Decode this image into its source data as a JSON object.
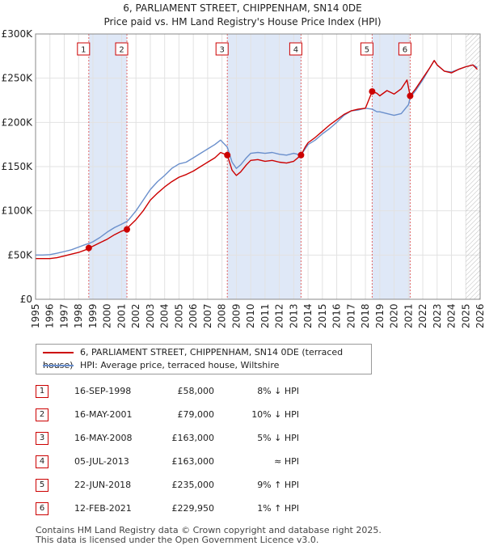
{
  "title_line1": "6, PARLIAMENT STREET, CHIPPENHAM, SN14 0DE",
  "title_line2": "Price paid vs. HM Land Registry's House Price Index (HPI)",
  "legend": {
    "red_label": "6, PARLIAMENT STREET, CHIPPENHAM, SN14 0DE (terraced house)",
    "blue_label": "HPI: Average price, terraced house, Wiltshire"
  },
  "events": [
    {
      "num": "1",
      "date": "16-SEP-1998",
      "price": "£58,000",
      "hpi": "8% ↓ HPI"
    },
    {
      "num": "2",
      "date": "16-MAY-2001",
      "price": "£79,000",
      "hpi": "10% ↓ HPI"
    },
    {
      "num": "3",
      "date": "16-MAY-2008",
      "price": "£163,000",
      "hpi": "5% ↓ HPI"
    },
    {
      "num": "4",
      "date": "05-JUL-2013",
      "price": "£163,000",
      "hpi": "≈ HPI"
    },
    {
      "num": "5",
      "date": "22-JUN-2018",
      "price": "£235,000",
      "hpi": "9% ↑ HPI"
    },
    {
      "num": "6",
      "date": "12-FEB-2021",
      "price": "£229,950",
      "hpi": "1% ↑ HPI"
    }
  ],
  "footer_line1": "Contains HM Land Registry data © Crown copyright and database right 2025.",
  "footer_line2": "This data is licensed under the Open Government Licence v3.0.",
  "colors": {
    "red": "#cc0000",
    "blue": "#6a8fcc",
    "shade": "#dfe8f7",
    "grid": "#e2e2e2"
  },
  "chart_data": {
    "type": "line",
    "title": "6, PARLIAMENT STREET, CHIPPENHAM, SN14 0DE",
    "subtitle": "Price paid vs. HM Land Registry's House Price Index (HPI)",
    "xlim": [
      1995,
      2026
    ],
    "ylim": [
      0,
      300000
    ],
    "x_ticks": [
      1995,
      1996,
      1997,
      1998,
      1999,
      2000,
      2001,
      2002,
      2003,
      2004,
      2005,
      2006,
      2007,
      2008,
      2009,
      2010,
      2011,
      2012,
      2013,
      2014,
      2015,
      2016,
      2017,
      2018,
      2019,
      2020,
      2021,
      2022,
      2023,
      2024,
      2025,
      2026
    ],
    "y_ticks": [
      {
        "value": 0,
        "label": "£0"
      },
      {
        "value": 50000,
        "label": "£50K"
      },
      {
        "value": 100000,
        "label": "£100K"
      },
      {
        "value": 150000,
        "label": "£150K"
      },
      {
        "value": 200000,
        "label": "£200K"
      },
      {
        "value": 250000,
        "label": "£250K"
      },
      {
        "value": 300000,
        "label": "£300K"
      }
    ],
    "shaded_periods": [
      [
        1998.71,
        2001.37
      ],
      [
        2008.37,
        2013.51
      ],
      [
        2018.47,
        2021.12
      ]
    ],
    "hatched_from": 2025.0,
    "sales": [
      {
        "label": "1",
        "x": 1998.71,
        "y": 58000
      },
      {
        "label": "2",
        "x": 2001.37,
        "y": 79000
      },
      {
        "label": "3",
        "x": 2008.37,
        "y": 163000
      },
      {
        "label": "4",
        "x": 2013.51,
        "y": 163000
      },
      {
        "label": "5",
        "x": 2018.47,
        "y": 235000
      },
      {
        "label": "6",
        "x": 2021.12,
        "y": 229950
      }
    ],
    "series": [
      {
        "name": "HPI: Average price, terraced house, Wiltshire",
        "color": "#6a8fcc",
        "x": [
          1995.0,
          1995.5,
          1996.0,
          1996.5,
          1997.0,
          1997.5,
          1998.0,
          1998.5,
          1998.71,
          1999.0,
          1999.5,
          2000.0,
          2000.5,
          2001.0,
          2001.37,
          2001.5,
          2002.0,
          2002.5,
          2003.0,
          2003.5,
          2004.0,
          2004.5,
          2005.0,
          2005.5,
          2006.0,
          2006.5,
          2007.0,
          2007.5,
          2007.9,
          2008.37,
          2008.7,
          2009.0,
          2009.3,
          2009.7,
          2010.0,
          2010.5,
          2011.0,
          2011.5,
          2012.0,
          2012.5,
          2013.0,
          2013.51,
          2013.8,
          2014.0,
          2014.5,
          2015.0,
          2015.5,
          2016.0,
          2016.5,
          2017.0,
          2017.5,
          2018.0,
          2018.47,
          2018.8,
          2019.0,
          2019.5,
          2020.0,
          2020.5,
          2021.0,
          2021.12,
          2021.5,
          2022.0,
          2022.5,
          2022.8,
          2023.0,
          2023.5,
          2024.0,
          2024.5,
          2025.0,
          2025.5,
          2025.8
        ],
        "values": [
          50000,
          50000,
          50500,
          52000,
          54000,
          56000,
          59000,
          62000,
          63000,
          65000,
          70000,
          76000,
          81000,
          85000,
          88000,
          90000,
          100000,
          112000,
          124000,
          133000,
          140000,
          148000,
          153000,
          155000,
          160000,
          165000,
          170000,
          175000,
          180000,
          172000,
          155000,
          148000,
          152000,
          160000,
          165000,
          166000,
          165000,
          166000,
          164000,
          163000,
          165000,
          163000,
          170000,
          175000,
          180000,
          187000,
          193000,
          200000,
          208000,
          213000,
          214000,
          216000,
          215000,
          212000,
          212000,
          210000,
          208000,
          210000,
          220000,
          228000,
          236000,
          248000,
          262000,
          270000,
          265000,
          258000,
          257000,
          260000,
          263000,
          265000,
          262000
        ]
      },
      {
        "name": "6, PARLIAMENT STREET, CHIPPENHAM, SN14 0DE (terraced house)",
        "color": "#cc0000",
        "x": [
          1995.0,
          1995.5,
          1996.0,
          1996.5,
          1997.0,
          1997.5,
          1998.0,
          1998.5,
          1998.71,
          1999.0,
          1999.5,
          2000.0,
          2000.5,
          2001.0,
          2001.37,
          2001.5,
          2002.0,
          2002.5,
          2003.0,
          2003.5,
          2004.0,
          2004.5,
          2005.0,
          2005.5,
          2006.0,
          2006.5,
          2007.0,
          2007.5,
          2007.9,
          2008.37,
          2008.7,
          2009.0,
          2009.3,
          2009.7,
          2010.0,
          2010.5,
          2011.0,
          2011.5,
          2012.0,
          2012.5,
          2013.0,
          2013.51,
          2013.8,
          2014.0,
          2014.5,
          2015.0,
          2015.5,
          2016.0,
          2016.5,
          2017.0,
          2017.5,
          2018.0,
          2018.47,
          2018.8,
          2019.0,
          2019.5,
          2020.0,
          2020.5,
          2020.9,
          2021.12,
          2021.5,
          2022.0,
          2022.5,
          2022.8,
          2023.0,
          2023.5,
          2024.0,
          2024.5,
          2025.0,
          2025.5,
          2025.8
        ],
        "values": [
          46000,
          46000,
          46000,
          47000,
          49000,
          51000,
          53000,
          56000,
          58000,
          60000,
          64000,
          68000,
          73000,
          77000,
          79000,
          82000,
          90000,
          100000,
          112000,
          120000,
          127000,
          133000,
          138000,
          141000,
          145000,
          150000,
          155000,
          160000,
          166000,
          163000,
          146000,
          140000,
          144000,
          152000,
          157000,
          158000,
          156000,
          157000,
          155000,
          154000,
          156000,
          163000,
          172000,
          177000,
          183000,
          190000,
          197000,
          203000,
          209000,
          213000,
          215000,
          216000,
          235000,
          233000,
          230000,
          236000,
          232000,
          238000,
          248000,
          229950,
          238000,
          250000,
          262000,
          270000,
          265000,
          258000,
          256000,
          260000,
          263000,
          265000,
          260000
        ]
      }
    ]
  }
}
